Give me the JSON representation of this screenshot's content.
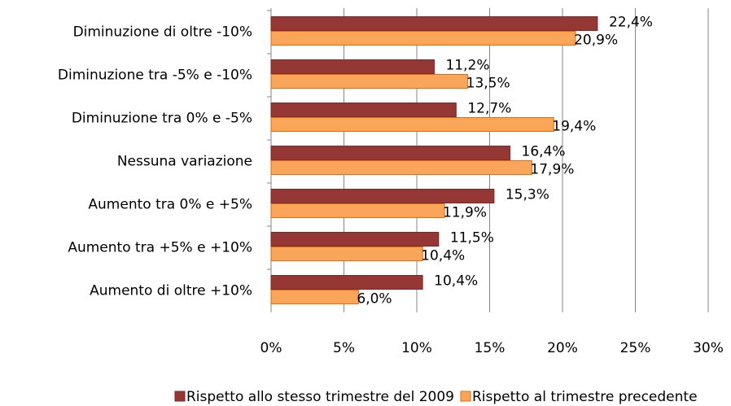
{
  "chart_data": {
    "type": "bar",
    "orientation": "horizontal",
    "categories": [
      "Diminuzione di oltre -10%",
      "Diminuzione tra -5% e -10%",
      "Diminuzione tra 0% e -5%",
      "Nessuna variazione",
      "Aumento tra 0% e +5%",
      "Aumento tra +5% e +10%",
      "Aumento di oltre +10%"
    ],
    "series": [
      {
        "name": "Rispetto allo stesso trimestre del 2009",
        "color": "#953735",
        "values": [
          22.4,
          11.2,
          12.7,
          16.4,
          15.3,
          11.5,
          10.4
        ],
        "value_labels": [
          "22,4%",
          "11,2%",
          "12,7%",
          "16,4%",
          "15,3%",
          "11,5%",
          "10,4%"
        ]
      },
      {
        "name": "Rispetto al trimestre precedente",
        "color": "#f9a55a",
        "values": [
          20.9,
          13.5,
          19.4,
          17.9,
          11.9,
          10.4,
          6.0
        ],
        "value_labels": [
          "20,9%",
          "13,5%",
          "19,4%",
          "17,9%",
          "11,9%",
          "10,4%",
          "6,0%"
        ]
      }
    ],
    "xlim": [
      0,
      30
    ],
    "xticks": [
      {
        "value": 0,
        "label": "0%"
      },
      {
        "value": 5,
        "label": "5%"
      },
      {
        "value": 10,
        "label": "10%"
      },
      {
        "value": 15,
        "label": "15%"
      },
      {
        "value": 20,
        "label": "20%"
      },
      {
        "value": 25,
        "label": "25%"
      },
      {
        "value": 30,
        "label": "30%"
      }
    ],
    "grid": true,
    "legend": "bottom"
  }
}
